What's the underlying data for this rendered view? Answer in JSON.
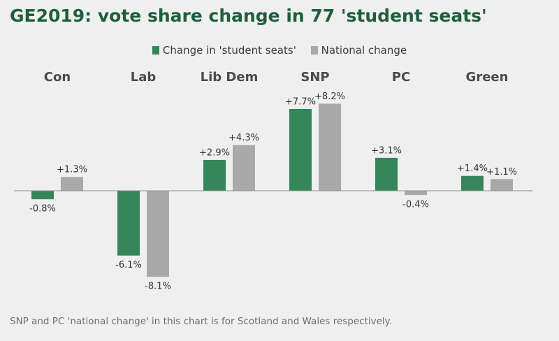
{
  "title": "GE2019: vote share change in 77 'student seats'",
  "footnote": "SNP and PC 'national change' in this chart is for Scotland and Wales respectively.",
  "colors": {
    "student": "#358659",
    "national": "#a9a9a9",
    "title": "#1f5e3a",
    "baseline": "#8f8f8f"
  },
  "chart_data": {
    "type": "bar",
    "categories": [
      "Con",
      "Lab",
      "Lib Dem",
      "SNP",
      "PC",
      "Green"
    ],
    "series": [
      {
        "name": "Change in 'student seats'",
        "values": [
          -0.8,
          -6.1,
          2.9,
          7.7,
          3.1,
          1.4
        ],
        "labels": [
          "-0.8%",
          "-6.1%",
          "+2.9%",
          "+7.7%",
          "+3.1%",
          "+1.4%"
        ]
      },
      {
        "name": "National change",
        "values": [
          1.3,
          -8.1,
          4.3,
          8.2,
          -0.4,
          1.1
        ],
        "labels": [
          "+1.3%",
          "-8.1%",
          "+4.3%",
          "+8.2%",
          "-0.4%",
          "+1.1%"
        ]
      }
    ],
    "legend_position": "top-center",
    "grid": false
  }
}
